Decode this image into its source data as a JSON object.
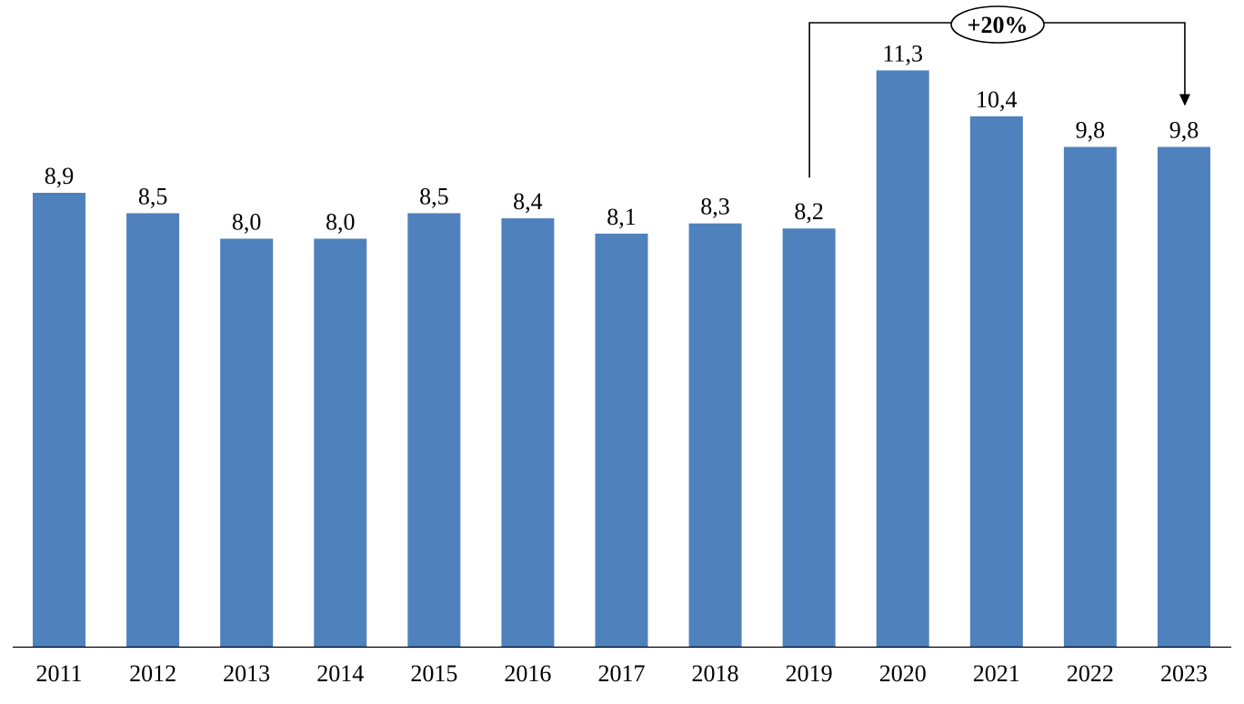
{
  "chart_data": {
    "type": "bar",
    "categories": [
      "2011",
      "2012",
      "2013",
      "2014",
      "2015",
      "2016",
      "2017",
      "2018",
      "2019",
      "2020",
      "2021",
      "2022",
      "2023"
    ],
    "values": [
      8.9,
      8.5,
      8.0,
      8.0,
      8.5,
      8.4,
      8.1,
      8.3,
      8.2,
      11.3,
      10.4,
      9.8,
      9.8
    ],
    "data_labels": [
      "8,9",
      "8,5",
      "8,0",
      "8,0",
      "8,5",
      "8,4",
      "8,1",
      "8,3",
      "8,2",
      "11,3",
      "10,4",
      "9,8",
      "9,8"
    ],
    "title": "",
    "xlabel": "",
    "ylabel": "",
    "ylim": [
      0,
      11.3
    ],
    "grid": false,
    "legend": "none",
    "bar_color": "#4F81BD",
    "annotation": {
      "text": "+20%",
      "from": "2019",
      "to": "2023"
    }
  }
}
